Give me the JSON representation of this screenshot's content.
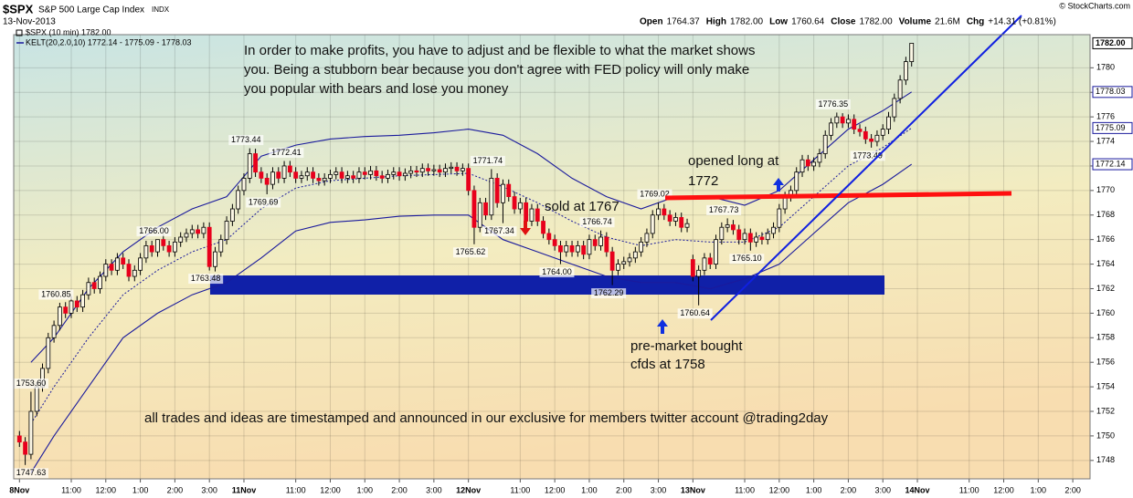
{
  "chart_data": {
    "type": "candlestick",
    "symbol": "$SPX",
    "name": "S&P 500 Large Cap Index",
    "exchange": "INDX",
    "date": "13-Nov-2013",
    "quote": [
      {
        "label": "Open",
        "value": "1764.37"
      },
      {
        "label": "High",
        "value": "1782.00"
      },
      {
        "label": "Low",
        "value": "1760.64"
      },
      {
        "label": "Close",
        "value": "1782.00"
      },
      {
        "label": "Volume",
        "value": "21.6M"
      },
      {
        "label": "Chg",
        "value": "+14.31 (+0.81%)"
      }
    ],
    "legend": [
      "$SPX (10 min) 1782.00",
      "KELT(20,2.0,10) 1772.14 - 1775.09 - 1778.03"
    ],
    "last_price_label": "1782.00",
    "credit": "© StockCharts.com",
    "notes": {
      "main": [
        "In order to make profits, you have to adjust and be flexible to what the market shows",
        "you. Being a stubborn bear because you don't agree with FED policy will only make",
        "you popular with bears and lose you money"
      ],
      "sold": "sold at 1767",
      "long": [
        "opened long at",
        "1772"
      ],
      "premarket": [
        "pre-market bought",
        "cfds at 1758"
      ],
      "footer": "all trades and ideas are timestamped and announced in our exclusive for members twitter account @trading2day"
    },
    "price_labels": [
      "1747.63",
      "1753.60",
      "1760.85",
      "1766.00",
      "1763.48",
      "1773.44",
      "1769.69",
      "1772.41",
      "1765.62",
      "1771.74",
      "1767.34",
      "1764.00",
      "1766.74",
      "1762.29",
      "1769.02",
      "1760.64",
      "1767.73",
      "1765.10",
      "1776.35",
      "1773.49"
    ],
    "xlim": [
      -1,
      186
    ],
    "xticks": [
      {
        "value": 0,
        "label": "8Nov"
      },
      {
        "value": 9,
        "label": "11:00"
      },
      {
        "value": 15,
        "label": "12:00"
      },
      {
        "value": 21,
        "label": "1:00"
      },
      {
        "value": 27,
        "label": "2:00"
      },
      {
        "value": 33,
        "label": "3:00"
      },
      {
        "value": 39,
        "label": "11Nov"
      },
      {
        "value": 48,
        "label": "11:00"
      },
      {
        "value": 54,
        "label": "12:00"
      },
      {
        "value": 60,
        "label": "1:00"
      },
      {
        "value": 66,
        "label": "2:00"
      },
      {
        "value": 72,
        "label": "3:00"
      },
      {
        "value": 78,
        "label": "12Nov"
      },
      {
        "value": 87,
        "label": "11:00"
      },
      {
        "value": 93,
        "label": "12:00"
      },
      {
        "value": 99,
        "label": "1:00"
      },
      {
        "value": 105,
        "label": "2:00"
      },
      {
        "value": 111,
        "label": "3:00"
      },
      {
        "value": 117,
        "label": "13Nov"
      },
      {
        "value": 126,
        "label": "11:00"
      },
      {
        "value": 132,
        "label": "12:00"
      },
      {
        "value": 138,
        "label": "1:00"
      },
      {
        "value": 144,
        "label": "2:00"
      },
      {
        "value": 150,
        "label": "3:00"
      },
      {
        "value": 156,
        "label": "14Nov"
      },
      {
        "value": 165,
        "label": "11:00"
      },
      {
        "value": 171,
        "label": "12:00"
      },
      {
        "value": 177,
        "label": "1:00"
      },
      {
        "value": 183,
        "label": "2:00"
      }
    ],
    "ylim": [
      1746.5,
      1782.7
    ],
    "yticks": [
      1748,
      1750,
      1752,
      1754,
      1756,
      1758,
      1760,
      1762,
      1764,
      1766,
      1768,
      1770,
      1772,
      1774,
      1776,
      1778,
      1780
    ],
    "grid": true,
    "colors": {
      "up": "#000000",
      "down": "#e8001c",
      "wick": "#000000"
    },
    "open": [
      1750,
      1749.5,
      1748.5,
      1752,
      1754,
      1755.5,
      1758,
      1759,
      1760.5,
      1760,
      1761,
      1760.5,
      1761.5,
      1762.5,
      1762,
      1763,
      1764,
      1763.5,
      1764.5,
      1764,
      1763,
      1763.5,
      1764.5,
      1765.5,
      1765,
      1766,
      1765.5,
      1765,
      1765.8,
      1766.2,
      1766.5,
      1766.8,
      1766.5,
      1767,
      1763.8,
      1765,
      1766,
      1767.5,
      1768.5,
      1770,
      1771,
      1773,
      1771.5,
      1771,
      1770.5,
      1771.5,
      1771,
      1772,
      1771.5,
      1771,
      1771.2,
      1771.5,
      1771,
      1770.8,
      1771,
      1771.3,
      1771.5,
      1771,
      1771.2,
      1771,
      1771.5,
      1771.3,
      1771.6,
      1771.2,
      1771,
      1771.3,
      1771.5,
      1771.2,
      1771.4,
      1771.6,
      1771.5,
      1771.8,
      1771.6,
      1771.7,
      1771.5,
      1771.8,
      1771.9,
      1771.6,
      1771.8,
      1770,
      1767,
      1769,
      1768,
      1771,
      1769,
      1770.5,
      1769.5,
      1768.5,
      1769,
      1767.5,
      1768.5,
      1767.5,
      1766.5,
      1766,
      1765.5,
      1765,
      1765.5,
      1765,
      1765.5,
      1764.8,
      1766,
      1765.5,
      1766.2,
      1765,
      1763.5,
      1764,
      1764.2,
      1764.5,
      1765,
      1765.8,
      1766.5,
      1768,
      1768.5,
      1768,
      1767.5,
      1767.8,
      1767,
      1764.37,
      1763,
      1763.5,
      1764.5,
      1764,
      1766,
      1767,
      1767.2,
      1766.8,
      1766,
      1766.5,
      1765.8,
      1766.2,
      1766,
      1766.5,
      1767,
      1768.5,
      1769.5,
      1770,
      1771.5,
      1772.5,
      1772,
      1772.3,
      1773,
      1774.5,
      1775.5,
      1776,
      1775.5,
      1775.8,
      1775,
      1774.8,
      1774.2,
      1774,
      1774.5,
      1775,
      1776,
      1777.5,
      1779,
      1780.5
    ],
    "high": [
      1750.4,
      1749.9,
      1753.6,
      1754.4,
      1755.9,
      1758.4,
      1759.4,
      1760.85,
      1760.9,
      1761.4,
      1761.4,
      1761.9,
      1762.9,
      1762.9,
      1763.4,
      1764.4,
      1764.4,
      1764.9,
      1764.9,
      1764.4,
      1763.9,
      1764.9,
      1765.9,
      1765.9,
      1766,
      1766.4,
      1765.9,
      1766.2,
      1766.6,
      1766.9,
      1767.2,
      1767.2,
      1767.4,
      1767.4,
      1765.4,
      1766.4,
      1767.9,
      1768.9,
      1770.4,
      1771.4,
      1773.44,
      1773.4,
      1771.9,
      1771.4,
      1771.9,
      1771.9,
      1772.4,
      1772.41,
      1771.9,
      1771.6,
      1771.9,
      1771.9,
      1771.4,
      1771.4,
      1771.7,
      1771.9,
      1771.9,
      1771.6,
      1771.6,
      1771.9,
      1771.9,
      1772,
      1772,
      1771.6,
      1771.7,
      1771.9,
      1771.9,
      1771.8,
      1772,
      1772,
      1772.2,
      1772.2,
      1772.1,
      1772.1,
      1772.2,
      1772.3,
      1772.3,
      1772.2,
      1772.2,
      1770.4,
      1769.4,
      1769.4,
      1771.74,
      1771.4,
      1770.9,
      1770.9,
      1769.9,
      1769.4,
      1769.4,
      1768.9,
      1768.9,
      1767.9,
      1766.9,
      1766.4,
      1765.9,
      1765.9,
      1765.9,
      1765.9,
      1765.9,
      1766.4,
      1766.4,
      1766.74,
      1766.6,
      1765.4,
      1764.4,
      1764.6,
      1764.9,
      1765.4,
      1766.2,
      1766.9,
      1768.4,
      1769.02,
      1768.9,
      1768.4,
      1768.2,
      1768.2,
      1767.7,
      1764.77,
      1763.9,
      1764.9,
      1764.9,
      1766.4,
      1767.4,
      1767.73,
      1767.6,
      1767.2,
      1766.9,
      1766.9,
      1766.6,
      1766.6,
      1766.9,
      1767.4,
      1768.9,
      1769.9,
      1770.4,
      1771.9,
      1772.9,
      1772.9,
      1772.7,
      1773.4,
      1774.9,
      1775.9,
      1776.35,
      1776.3,
      1776.2,
      1776.2,
      1775.4,
      1775.2,
      1774.6,
      1774.9,
      1775.4,
      1776.4,
      1777.9,
      1779.4,
      1780.9,
      1782
    ],
    "low": [
      1749.1,
      1747.63,
      1748.1,
      1751.6,
      1753.6,
      1755.1,
      1757.6,
      1758.6,
      1759.6,
      1759.6,
      1760.1,
      1760.1,
      1761.1,
      1761.6,
      1761.6,
      1762.6,
      1763.1,
      1763.1,
      1763.6,
      1762.6,
      1762.6,
      1763.1,
      1764.1,
      1764.6,
      1764.6,
      1765.1,
      1764.6,
      1764.6,
      1765.4,
      1765.8,
      1766.1,
      1766.1,
      1766.1,
      1763.48,
      1763.4,
      1764.6,
      1765.6,
      1767.1,
      1768.1,
      1769.6,
      1770.6,
      1771.1,
      1770.6,
      1769.69,
      1770.1,
      1770.6,
      1770.6,
      1771.1,
      1770.6,
      1770.6,
      1770.8,
      1770.6,
      1770.4,
      1770.4,
      1770.6,
      1770.9,
      1770.6,
      1770.6,
      1770.6,
      1770.6,
      1770.9,
      1770.9,
      1770.8,
      1770.6,
      1770.6,
      1770.9,
      1770.8,
      1770.8,
      1771,
      1771.1,
      1771.1,
      1771.2,
      1771.2,
      1771.1,
      1771.1,
      1771.4,
      1771.2,
      1771.2,
      1769.6,
      1765.62,
      1766.6,
      1767.6,
      1767.6,
      1768.6,
      1767.34,
      1769.1,
      1768.1,
      1768.1,
      1767.1,
      1767.1,
      1767.1,
      1766.1,
      1765.6,
      1765.1,
      1764,
      1764.6,
      1764.6,
      1764.6,
      1764.4,
      1764.4,
      1765.1,
      1765.1,
      1764.6,
      1762.29,
      1763.1,
      1763.6,
      1763.8,
      1764.1,
      1764.6,
      1765.4,
      1766.1,
      1767.6,
      1767.6,
      1767.1,
      1767.1,
      1766.6,
      1766.6,
      1762.6,
      1760.64,
      1763.1,
      1763.6,
      1763.6,
      1765.6,
      1766.6,
      1766.4,
      1765.6,
      1765.6,
      1765.1,
      1765.4,
      1765.6,
      1765.6,
      1766.1,
      1766.6,
      1768.1,
      1769.1,
      1769.6,
      1771.1,
      1771.6,
      1771.6,
      1771.9,
      1772.6,
      1774.1,
      1775.1,
      1775.1,
      1775.1,
      1774.6,
      1774.4,
      1773.8,
      1773.49,
      1773.6,
      1774.1,
      1774.6,
      1775.6,
      1777.1,
      1778.6,
      1780.1
    ],
    "close": [
      1749.5,
      1748.5,
      1752,
      1754,
      1755.5,
      1758,
      1759,
      1760.5,
      1760,
      1761,
      1760.5,
      1761.5,
      1762.5,
      1762,
      1763,
      1764,
      1763.5,
      1764.5,
      1764,
      1763,
      1763.5,
      1764.5,
      1765.5,
      1765,
      1766,
      1765.5,
      1765,
      1765.8,
      1766.2,
      1766.5,
      1766.8,
      1766.5,
      1767,
      1763.8,
      1765,
      1766,
      1767.5,
      1768.5,
      1770,
      1771,
      1773,
      1771.5,
      1771,
      1770.5,
      1771.5,
      1771,
      1772,
      1771.5,
      1771,
      1771.2,
      1771.5,
      1771,
      1770.8,
      1771,
      1771.3,
      1771.5,
      1771,
      1771.2,
      1771,
      1771.5,
      1771.3,
      1771.6,
      1771.2,
      1771,
      1771.3,
      1771.5,
      1771.2,
      1771.4,
      1771.6,
      1771.5,
      1771.8,
      1771.6,
      1771.7,
      1771.5,
      1771.8,
      1771.9,
      1771.6,
      1771.8,
      1770,
      1767,
      1769,
      1768,
      1771,
      1769,
      1770.5,
      1769.5,
      1768.5,
      1769,
      1767.5,
      1768.5,
      1767.5,
      1766.5,
      1766,
      1765.5,
      1765,
      1765.5,
      1765,
      1765.5,
      1764.8,
      1766,
      1765.5,
      1766.2,
      1765,
      1763.5,
      1764,
      1764.2,
      1764.5,
      1765,
      1765.8,
      1766.5,
      1768,
      1768.5,
      1768,
      1767.5,
      1767.8,
      1767,
      1767.3,
      1763,
      1763.5,
      1764.5,
      1764,
      1766,
      1767,
      1767.2,
      1766.8,
      1766,
      1766.5,
      1765.8,
      1766.2,
      1766,
      1766.5,
      1767,
      1768.5,
      1769.5,
      1770,
      1771.5,
      1772.5,
      1772,
      1772.3,
      1773,
      1774.5,
      1775.5,
      1776,
      1775.5,
      1775.8,
      1775,
      1774.8,
      1774.2,
      1774,
      1774.5,
      1775,
      1776,
      1777.5,
      1779,
      1780.5,
      1782
    ],
    "keltner": {
      "color": "#1a1a9c",
      "x": [
        2,
        6,
        12,
        18,
        24,
        30,
        36,
        42,
        48,
        54,
        60,
        66,
        72,
        78,
        84,
        90,
        96,
        102,
        108,
        114,
        120,
        126,
        132,
        138,
        144,
        150,
        155
      ],
      "upper": [
        1756,
        1758,
        1762,
        1765,
        1767,
        1768.5,
        1769.5,
        1772.8,
        1773.7,
        1774.2,
        1774.4,
        1774.5,
        1774.7,
        1775,
        1774.5,
        1773,
        1771,
        1769.5,
        1768.5,
        1769.5,
        1769.5,
        1768.8,
        1770,
        1772.5,
        1775,
        1776.5,
        1778.03
      ],
      "middle": [
        1751,
        1754,
        1758,
        1761.5,
        1763.5,
        1765,
        1766,
        1768.5,
        1770.2,
        1770.8,
        1771,
        1771.2,
        1771.3,
        1771.4,
        1770.3,
        1769,
        1767.5,
        1766.2,
        1765.5,
        1766,
        1765.8,
        1765.8,
        1767,
        1769.5,
        1772,
        1773.5,
        1775.09
      ],
      "lower": [
        1747,
        1750,
        1754,
        1758,
        1760,
        1761.5,
        1762.5,
        1764.5,
        1766.7,
        1767.4,
        1767.6,
        1767.9,
        1768,
        1768,
        1766,
        1765,
        1764,
        1763,
        1762.5,
        1762.5,
        1762,
        1762.8,
        1764,
        1766.5,
        1769,
        1770.5,
        1772.14
      ]
    }
  }
}
